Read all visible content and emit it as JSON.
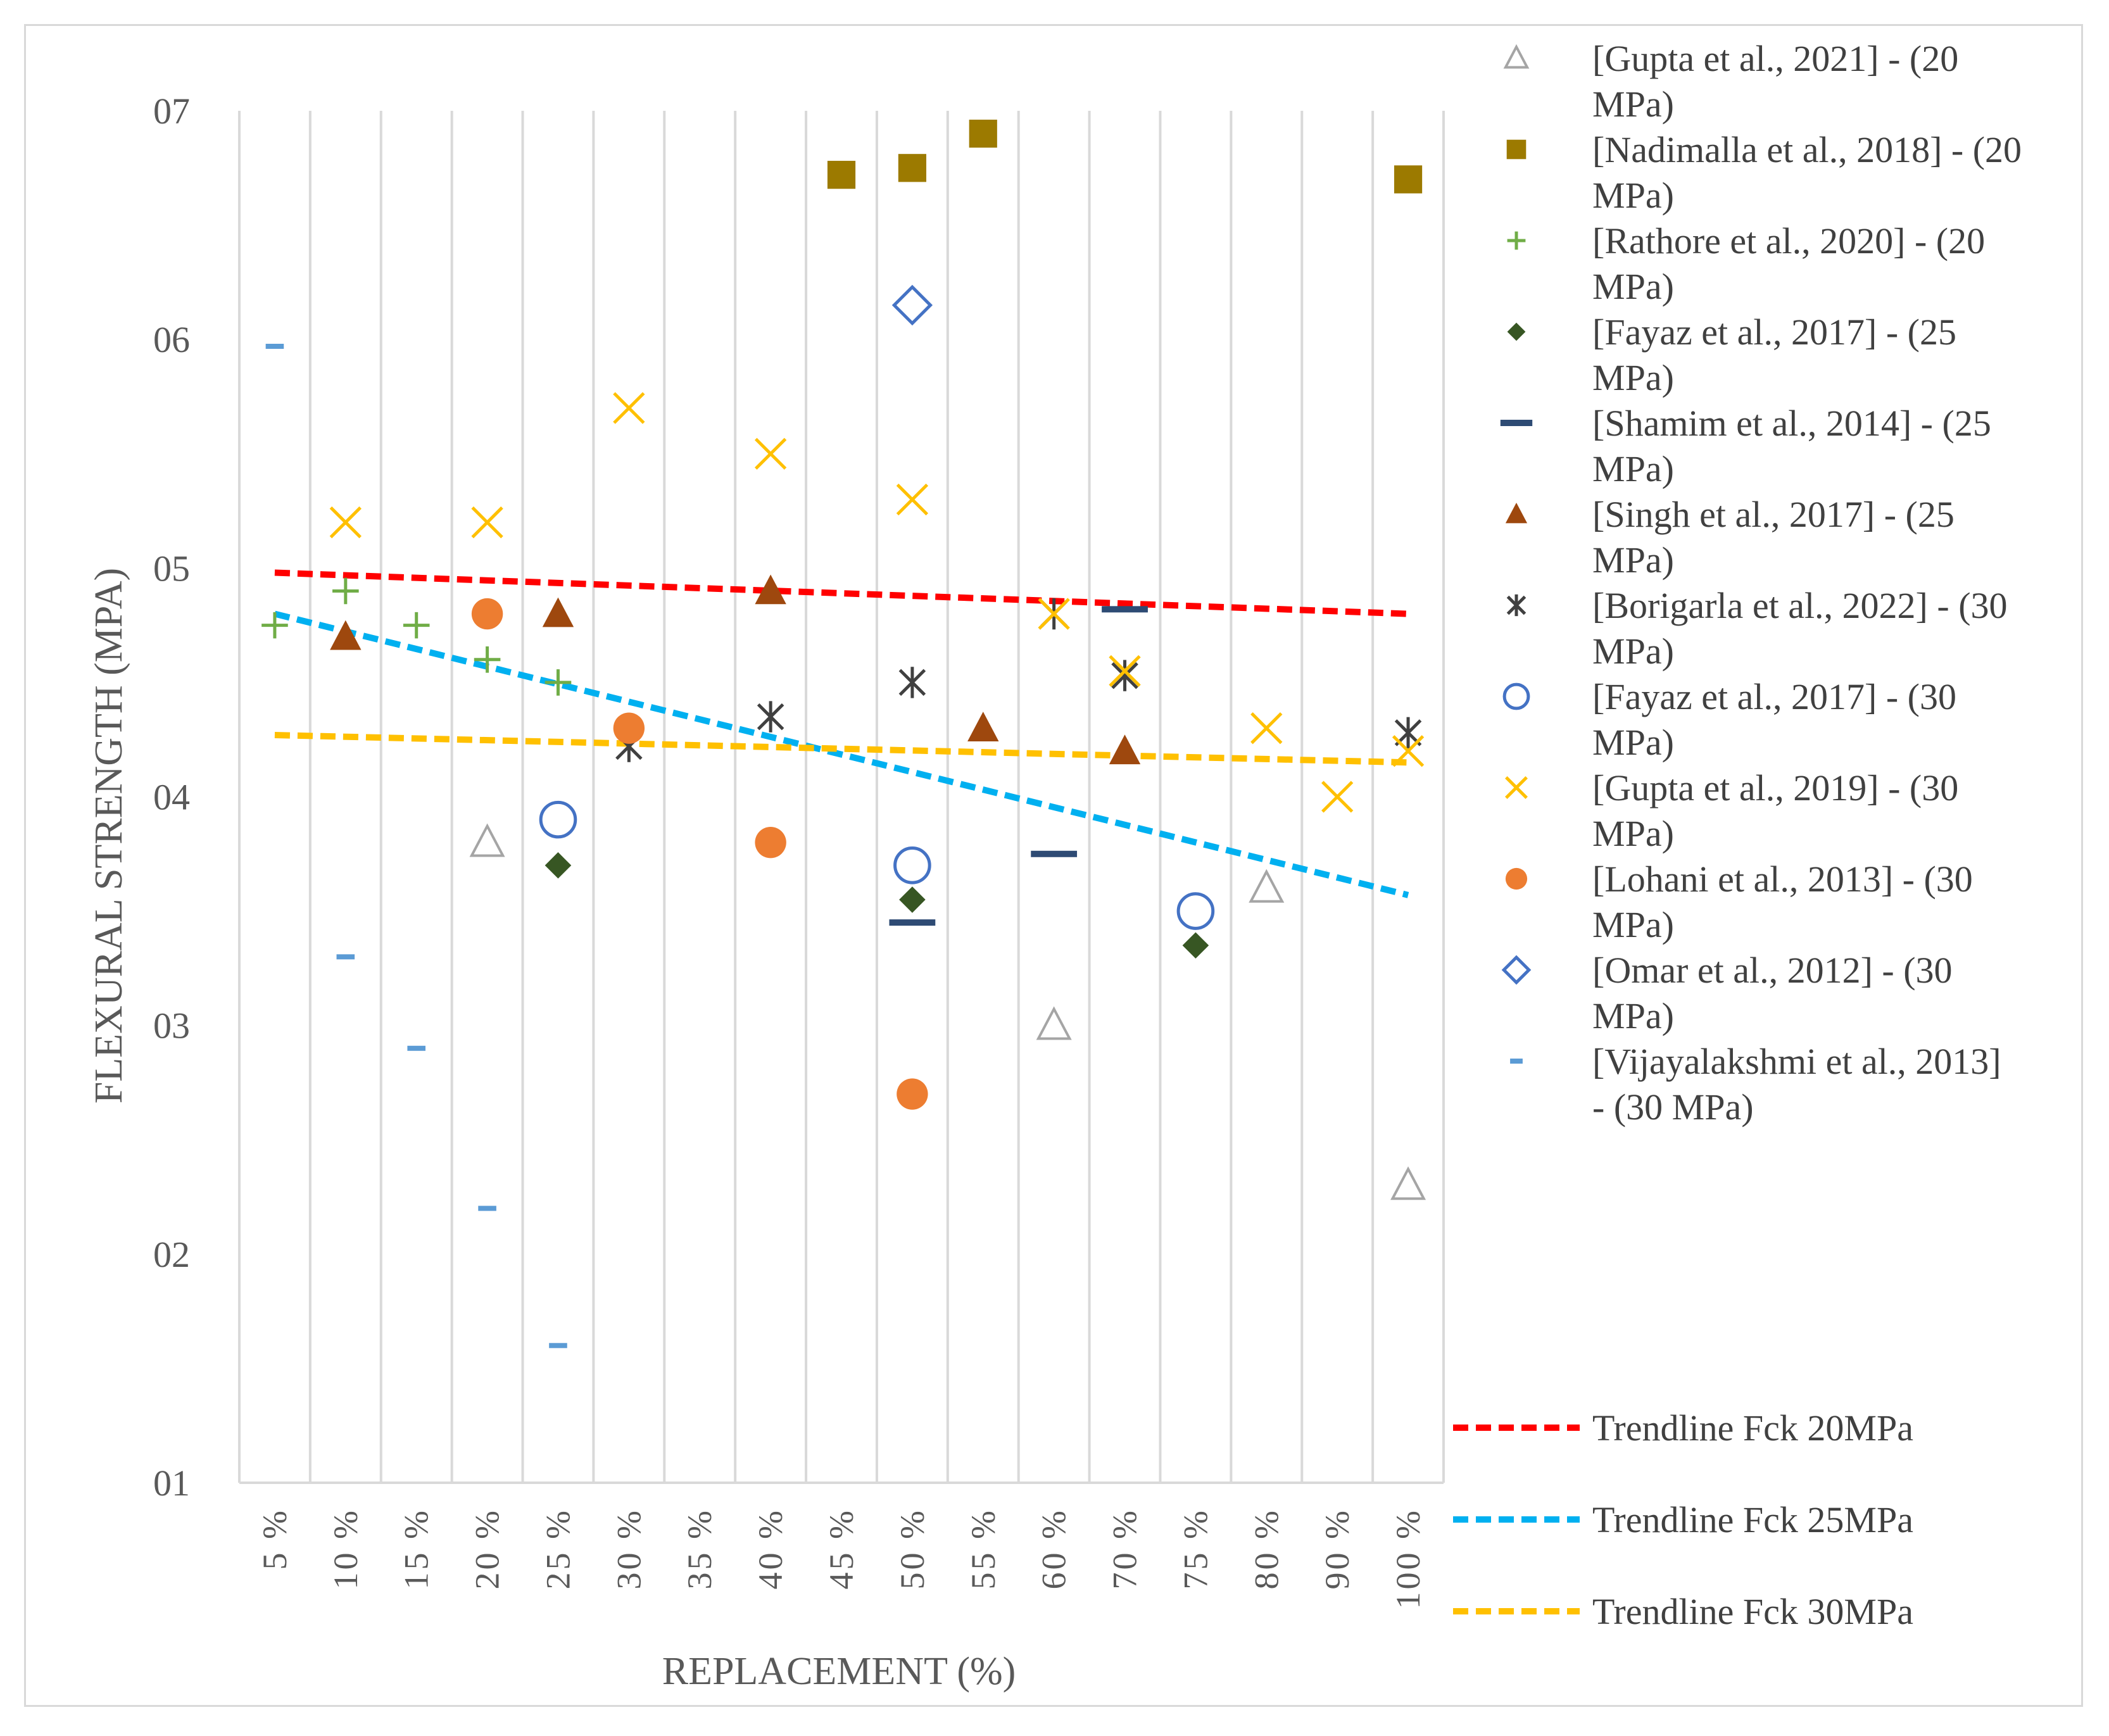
{
  "chart_data": {
    "type": "scatter",
    "title": "",
    "xlabel": "REPLACEMENT (%)",
    "ylabel": "FLEXURAL STRENGTH (MPA)",
    "categories": [
      "5 %",
      "10 %",
      "15 %",
      "20 %",
      "25 %",
      "30 %",
      "35 %",
      "40 %",
      "45 %",
      "50 %",
      "55 %",
      "60 %",
      "70 %",
      "75 %",
      "80 %",
      "90 %",
      "100 %"
    ],
    "y_ticks": [
      "01",
      "02",
      "03",
      "04",
      "05",
      "06",
      "07"
    ],
    "ylim": [
      1,
      7
    ],
    "grid": true,
    "legend_position": "right",
    "series": [
      {
        "name": "[Gupta et al., 2021] - (20 MPa)",
        "marker": "triangle-open",
        "color": "#a5a5a5",
        "points": [
          [
            4,
            3.8
          ],
          [
            12,
            3.0
          ],
          [
            15,
            3.6
          ],
          [
            17,
            2.3
          ]
        ]
      },
      {
        "name": "[Nadimalla et al., 2018] - (20 MPa)",
        "marker": "square",
        "color": "#9c7a00",
        "points": [
          [
            9,
            6.72
          ],
          [
            10,
            6.75
          ],
          [
            11,
            6.9
          ],
          [
            17,
            6.7
          ]
        ]
      },
      {
        "name": "[Rathore et al., 2020] - (20 MPa)",
        "marker": "plus",
        "color": "#70ad47",
        "points": [
          [
            1,
            4.75
          ],
          [
            2,
            4.9
          ],
          [
            3,
            4.75
          ],
          [
            4,
            4.6
          ],
          [
            5,
            4.5
          ]
        ]
      },
      {
        "name": "[Fayaz et al., 2017] - (25 MPa)",
        "marker": "diamond",
        "color": "#375623",
        "points": [
          [
            5,
            3.7
          ],
          [
            10,
            3.55
          ],
          [
            14,
            3.35
          ]
        ]
      },
      {
        "name": "[Shamim et al., 2014] - (25 MPa)",
        "marker": "dash",
        "color": "#2e4b74",
        "points": [
          [
            10,
            3.45
          ],
          [
            12,
            3.75
          ],
          [
            13,
            4.82
          ]
        ]
      },
      {
        "name": "[Singh et al., 2017] - (25 MPa)",
        "marker": "triangle",
        "color": "#9e480e",
        "points": [
          [
            2,
            4.7
          ],
          [
            5,
            4.8
          ],
          [
            8,
            4.9
          ],
          [
            11,
            4.3
          ],
          [
            13,
            4.2
          ]
        ]
      },
      {
        "name": "[Borigarla et al., 2022] - (30 MPa)",
        "marker": "asterisk",
        "color": "#404040",
        "points": [
          [
            6,
            4.22
          ],
          [
            8,
            4.35
          ],
          [
            10,
            4.5
          ],
          [
            12,
            4.8
          ],
          [
            13,
            4.53
          ],
          [
            17,
            4.28
          ]
        ]
      },
      {
        "name": "[Fayaz et al., 2017] - (30 MPa)",
        "marker": "circle-open",
        "color": "#4472c4",
        "points": [
          [
            5,
            3.9
          ],
          [
            10,
            3.7
          ],
          [
            14,
            3.5
          ]
        ]
      },
      {
        "name": "[Gupta et al., 2019] - (30 MPa)",
        "marker": "x",
        "color": "#ffc000",
        "points": [
          [
            2,
            5.2
          ],
          [
            4,
            5.2
          ],
          [
            6,
            5.7
          ],
          [
            8,
            5.5
          ],
          [
            10,
            5.3
          ],
          [
            12,
            4.8
          ],
          [
            13,
            4.55
          ],
          [
            15,
            4.3
          ],
          [
            16,
            4.0
          ],
          [
            17,
            4.2
          ]
        ]
      },
      {
        "name": "[Lohani et al., 2013] - (30 MPa)",
        "marker": "circle",
        "color": "#ed7d31",
        "points": [
          [
            4,
            4.8
          ],
          [
            6,
            4.3
          ],
          [
            8,
            3.8
          ],
          [
            10,
            2.7
          ]
        ]
      },
      {
        "name": "[Omar et al., 2012] - (30 MPa)",
        "marker": "diamond-open",
        "color": "#4472c4",
        "points": [
          [
            10,
            6.15
          ]
        ]
      },
      {
        "name": "[Vijayalakshmi et al., 2013] - (30 MPa)",
        "marker": "small-dash",
        "color": "#5b9bd5",
        "points": [
          [
            1,
            5.97
          ],
          [
            2,
            3.3
          ],
          [
            3,
            2.9
          ],
          [
            4,
            2.2
          ],
          [
            5,
            1.6
          ]
        ]
      }
    ],
    "trendlines": [
      {
        "name": "Trendline Fck 20MPa",
        "color": "#ff0000",
        "from": [
          1,
          4.98
        ],
        "to": [
          17,
          4.8
        ]
      },
      {
        "name": "Trendline Fck 25MPa",
        "color": "#00b0f0",
        "from": [
          1,
          4.8
        ],
        "to": [
          17,
          3.57
        ]
      },
      {
        "name": "Trendline Fck 30MPa",
        "color": "#ffc000",
        "from": [
          1,
          4.27
        ],
        "to": [
          17,
          4.15
        ]
      }
    ]
  },
  "legend": {
    "items": [
      {
        "line1": "[Gupta et al., 2021] - (20",
        "line2": "MPa)"
      },
      {
        "line1": "[Nadimalla et al., 2018] - (20",
        "line2": "MPa)"
      },
      {
        "line1": "[Rathore et al., 2020] - (20",
        "line2": "MPa)"
      },
      {
        "line1": "[Fayaz et al., 2017] - (25",
        "line2": "MPa)"
      },
      {
        "line1": "[Shamim et al., 2014] - (25",
        "line2": "MPa)"
      },
      {
        "line1": "[Singh et al., 2017] - (25",
        "line2": "MPa)"
      },
      {
        "line1": "[Borigarla et al., 2022] - (30",
        "line2": "MPa)"
      },
      {
        "line1": "[Fayaz et al., 2017] - (30",
        "line2": "MPa)"
      },
      {
        "line1": "[Gupta et al., 2019] - (30",
        "line2": "MPa)"
      },
      {
        "line1": "[Lohani et al., 2013] - (30",
        "line2": "MPa)"
      },
      {
        "line1": "[Omar et al., 2012] - (30",
        "line2": "MPa)"
      },
      {
        "line1": "[Vijayalakshmi et al., 2013]",
        "line2": "- (30 MPa)"
      }
    ],
    "trendlines": [
      "Trendline Fck 20MPa",
      "Trendline Fck 25MPa",
      "Trendline Fck 30MPa"
    ]
  }
}
